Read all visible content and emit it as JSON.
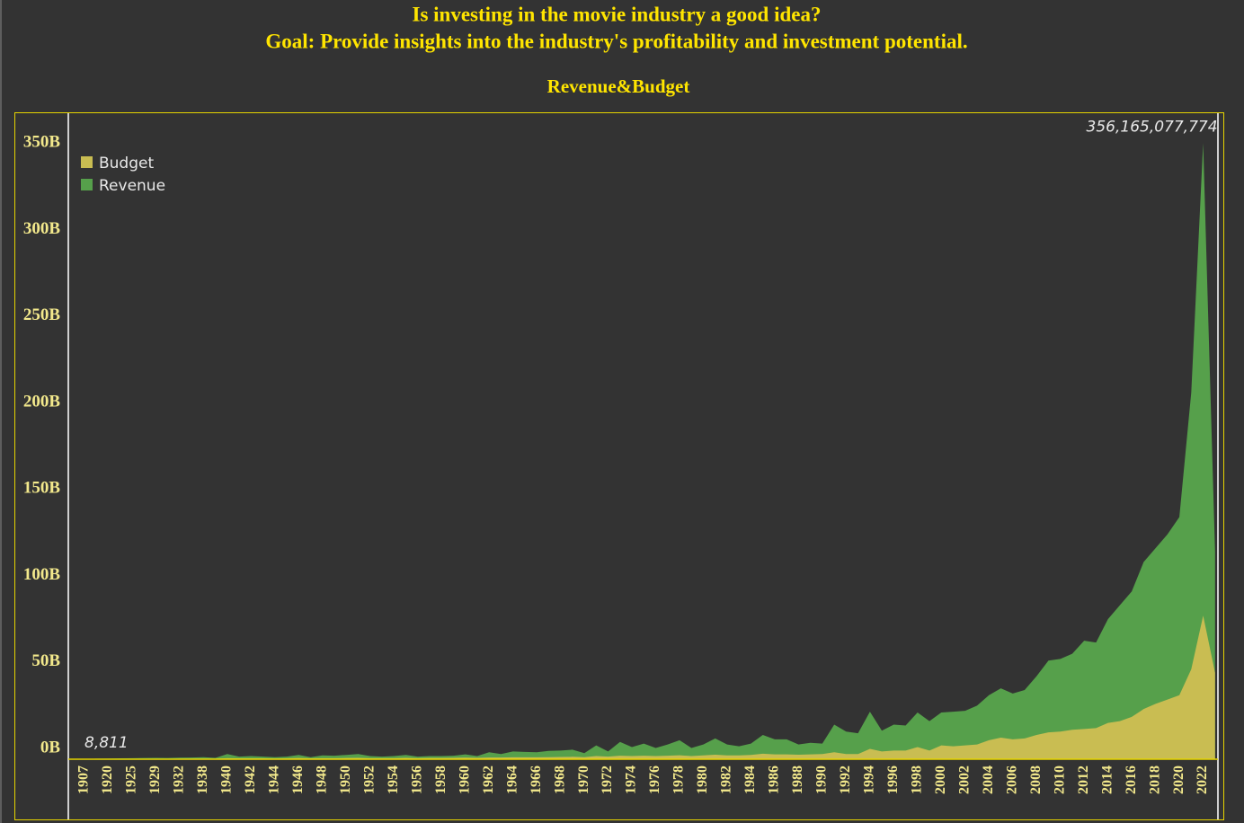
{
  "chart_data": {
    "type": "area",
    "title": "Is investing in the movie industry a good idea?",
    "subtitle": "Goal: Provide insights into the industry's profitability and investment potential.",
    "chart_title": "Revenue&Budget",
    "categories": [
      "1907",
      null,
      "1920",
      null,
      "1925",
      null,
      "1929",
      null,
      "1932",
      null,
      "1938",
      null,
      "1940",
      null,
      "1942",
      null,
      "1944",
      null,
      "1946",
      null,
      "1948",
      null,
      "1950",
      null,
      "1952",
      null,
      "1954",
      null,
      "1956",
      null,
      "1958",
      null,
      "1960",
      null,
      "1962",
      null,
      "1964",
      null,
      "1966",
      null,
      "1968",
      null,
      "1970",
      null,
      "1972",
      null,
      "1974",
      null,
      "1976",
      null,
      "1978",
      null,
      "1980",
      null,
      "1982",
      null,
      "1984",
      null,
      "1986",
      null,
      "1988",
      null,
      "1990",
      null,
      "1992",
      null,
      "1994",
      null,
      "1996",
      null,
      "1998",
      null,
      "2000",
      null,
      "2002",
      null,
      "2004",
      null,
      "2006",
      null,
      "2008",
      null,
      "2010",
      null,
      "2012",
      null,
      "2014",
      null,
      "2016",
      null,
      "2018",
      null,
      "2020",
      null,
      "2022",
      null
    ],
    "series": [
      {
        "name": "Revenue",
        "color": "#56a04b",
        "values": [
          8.811e-06,
          0.3,
          0.4,
          0.5,
          0.6,
          0.7,
          0.8,
          0.7,
          0.9,
          1.0,
          1.2,
          0.8,
          3,
          1.5,
          1.8,
          1.5,
          1.2,
          1.5,
          2.5,
          1.2,
          2.2,
          2.0,
          2.5,
          3.0,
          1.8,
          1.5,
          1.8,
          2.5,
          1.5,
          1.8,
          1.8,
          2.0,
          2.8,
          1.8,
          4.0,
          3.0,
          4.5,
          4.2,
          4.0,
          4.8,
          5.0,
          5.5,
          3.5,
          8.0,
          4.5,
          10.0,
          7.0,
          9.0,
          6.5,
          8.5,
          11.0,
          6.5,
          8.5,
          12.0,
          8.5,
          7.5,
          9.0,
          14.0,
          11.5,
          11.5,
          8.5,
          9.5,
          9.0,
          20.0,
          16.0,
          15.0,
          27.5,
          16.5,
          20.0,
          19.5,
          27.0,
          22.0,
          27.0,
          27.5,
          28.0,
          31.0,
          37.0,
          41.0,
          38.0,
          40.0,
          48.0,
          57.0,
          58.0,
          61.0,
          68.5,
          67.5,
          81.0,
          89.0,
          97.0,
          114.0,
          122.0,
          130.0,
          140.0,
          212.0,
          356.165077774,
          120.0
        ],
        "value_labels": [
          "8,811",
          null,
          null,
          null,
          null,
          null,
          null,
          null,
          null,
          null,
          null,
          null,
          null,
          null,
          null,
          null,
          null,
          null,
          null,
          null,
          null,
          null,
          null,
          null,
          null,
          null,
          null,
          null,
          null,
          null,
          null,
          null,
          null,
          null,
          null,
          null,
          null,
          null,
          null,
          null,
          null,
          null,
          null,
          null,
          null,
          null,
          null,
          null,
          null,
          null,
          null,
          null,
          null,
          null,
          null,
          null,
          null,
          null,
          null,
          null,
          null,
          null,
          null,
          null,
          null,
          null,
          null,
          null,
          null,
          null,
          null,
          null,
          null,
          null,
          null,
          null,
          null,
          null,
          null,
          null,
          null,
          null,
          null,
          null,
          null,
          null,
          null,
          null,
          null,
          null,
          null,
          null,
          null,
          null,
          "356,165,077,774",
          null
        ]
      },
      {
        "name": "Budget",
        "color": "#c9bd52",
        "values": [
          0,
          0.1,
          0.1,
          0.1,
          0.1,
          0.2,
          0.2,
          0.2,
          0.3,
          0.3,
          0.3,
          0.3,
          0.6,
          0.5,
          0.5,
          0.5,
          0.4,
          0.5,
          0.7,
          0.5,
          0.6,
          0.6,
          0.7,
          0.8,
          0.6,
          0.6,
          0.6,
          0.8,
          0.6,
          0.7,
          0.7,
          0.8,
          0.9,
          0.8,
          1.0,
          1.0,
          1.1,
          1.1,
          1.1,
          1.2,
          1.3,
          1.4,
          1.2,
          1.8,
          1.5,
          2.0,
          1.8,
          2.0,
          1.8,
          2.0,
          2.3,
          1.8,
          2.2,
          2.6,
          2.2,
          2.2,
          2.5,
          3.2,
          2.8,
          2.8,
          2.6,
          2.8,
          3.0,
          4.0,
          3.0,
          3.0,
          6.0,
          4.5,
          5.0,
          5.0,
          7.0,
          5.0,
          8.0,
          7.5,
          8.0,
          8.5,
          11.0,
          12.5,
          11.5,
          12.0,
          14.0,
          15.5,
          16.0,
          17.0,
          17.5,
          18.0,
          21.0,
          22.0,
          24.5,
          29.0,
          32.0,
          34.5,
          37.0,
          52.0,
          83.0,
          50.0
        ]
      }
    ],
    "legend_order": [
      1,
      0
    ],
    "ylim": [
      0,
      373
    ],
    "yticks": [
      {
        "value": 0,
        "label": "0B"
      },
      {
        "value": 50,
        "label": "50B"
      },
      {
        "value": 100,
        "label": "100B"
      },
      {
        "value": 150,
        "label": "150B"
      },
      {
        "value": 200,
        "label": "200B"
      },
      {
        "value": 250,
        "label": "250B"
      },
      {
        "value": 300,
        "label": "300B"
      },
      {
        "value": 350,
        "label": "350B"
      }
    ]
  }
}
